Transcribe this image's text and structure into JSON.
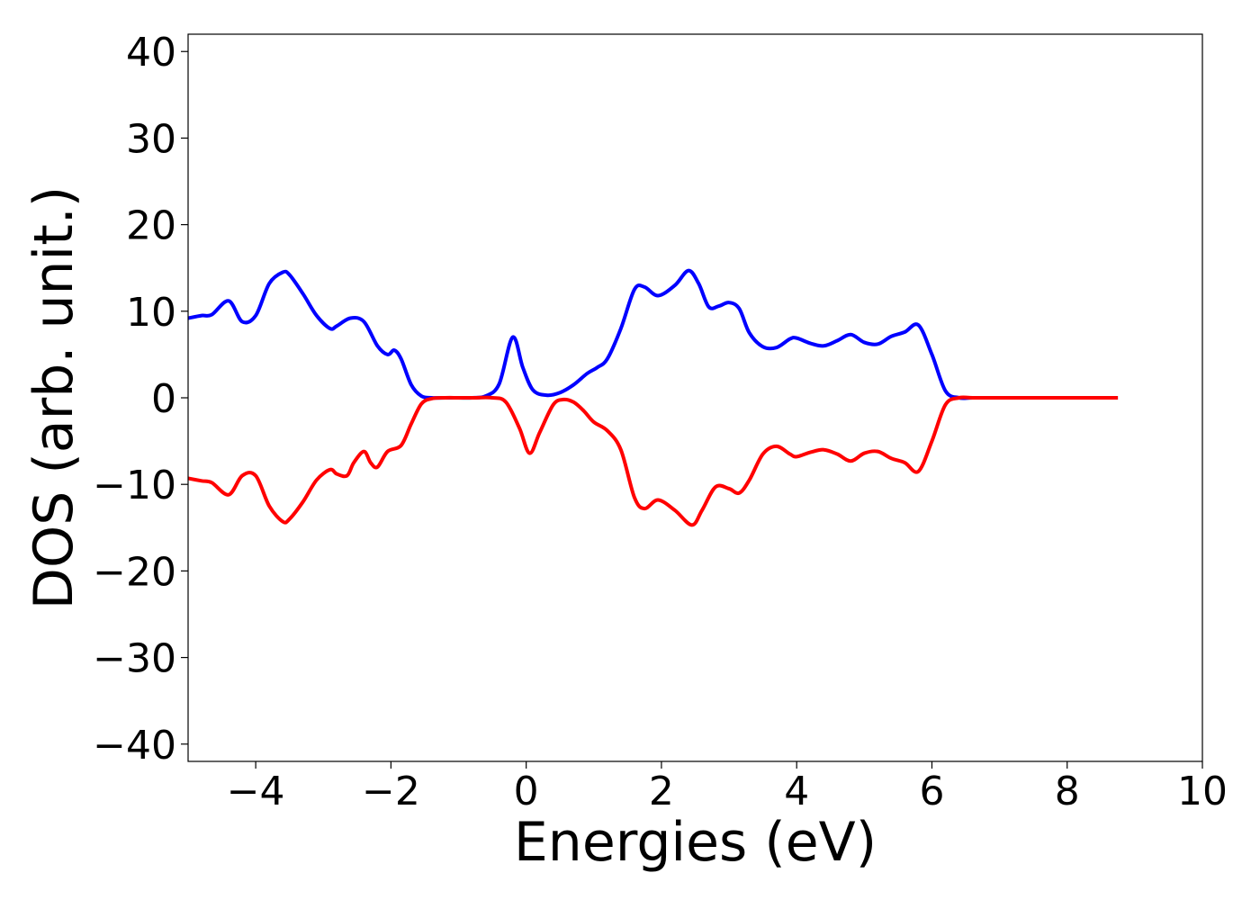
{
  "chart_data": {
    "type": "line",
    "title": "",
    "xlabel": "Energies (eV)",
    "ylabel": "DOS (arb. unit.)",
    "xlim": [
      -5,
      10
    ],
    "ylim": [
      -42,
      42
    ],
    "xticks": [
      -4,
      -2,
      0,
      2,
      4,
      6,
      8,
      10
    ],
    "yticks": [
      -40,
      -30,
      -20,
      -10,
      0,
      10,
      20,
      30,
      40
    ],
    "xtick_labels": [
      "−4",
      "−2",
      "0",
      "2",
      "4",
      "6",
      "8",
      "10"
    ],
    "ytick_labels": [
      "−40",
      "−30",
      "−20",
      "−10",
      "0",
      "10",
      "20",
      "30",
      "40"
    ],
    "grid": false,
    "legend": "none",
    "series": [
      {
        "color": "#0000ff",
        "x": [
          -5.0,
          -4.8,
          -4.65,
          -4.4,
          -4.2,
          -4.0,
          -3.8,
          -3.6,
          -3.5,
          -3.3,
          -3.1,
          -2.9,
          -2.8,
          -2.6,
          -2.4,
          -2.2,
          -2.05,
          -1.95,
          -1.85,
          -1.7,
          -1.55,
          -1.4,
          -1.2,
          -1.0,
          -0.8,
          -0.6,
          -0.4,
          -0.2,
          -0.05,
          0.1,
          0.3,
          0.5,
          0.7,
          0.9,
          1.05,
          1.2,
          1.4,
          1.6,
          1.75,
          1.95,
          2.2,
          2.4,
          2.55,
          2.7,
          2.85,
          3.0,
          3.15,
          3.3,
          3.5,
          3.7,
          3.9,
          4.0,
          4.2,
          4.4,
          4.6,
          4.8,
          5.0,
          5.2,
          5.4,
          5.6,
          5.8,
          6.0,
          6.2,
          6.4,
          6.6,
          7.0,
          7.5,
          8.0,
          8.5,
          8.75
        ],
        "y": [
          9.2,
          9.5,
          9.6,
          11.2,
          8.8,
          9.5,
          13.2,
          14.5,
          14.2,
          12.0,
          9.5,
          8.0,
          8.3,
          9.2,
          8.8,
          6.0,
          5.0,
          5.5,
          4.5,
          1.5,
          0.2,
          0.0,
          0.0,
          0.0,
          0.0,
          0.2,
          1.6,
          7.0,
          3.5,
          0.9,
          0.3,
          0.6,
          1.5,
          2.8,
          3.5,
          4.5,
          8.0,
          12.5,
          12.8,
          11.8,
          13.0,
          14.7,
          13.2,
          10.5,
          10.6,
          11.0,
          10.3,
          7.5,
          5.9,
          5.8,
          6.8,
          6.9,
          6.3,
          6.0,
          6.6,
          7.3,
          6.4,
          6.2,
          7.1,
          7.6,
          8.4,
          5.0,
          0.8,
          0.0,
          0.0,
          0.0,
          0.0,
          0.0,
          0.0,
          0.0
        ]
      },
      {
        "color": "#ff0000",
        "x": [
          -5.0,
          -4.8,
          -4.65,
          -4.4,
          -4.2,
          -4.0,
          -3.8,
          -3.6,
          -3.5,
          -3.3,
          -3.1,
          -2.9,
          -2.8,
          -2.65,
          -2.55,
          -2.4,
          -2.3,
          -2.2,
          -2.05,
          -1.85,
          -1.7,
          -1.55,
          -1.4,
          -1.2,
          -1.0,
          -0.8,
          -0.5,
          -0.3,
          -0.1,
          0.05,
          0.2,
          0.4,
          0.55,
          0.7,
          0.85,
          1.0,
          1.2,
          1.4,
          1.6,
          1.75,
          1.95,
          2.2,
          2.45,
          2.6,
          2.8,
          3.0,
          3.15,
          3.3,
          3.5,
          3.7,
          3.9,
          4.0,
          4.2,
          4.4,
          4.6,
          4.8,
          5.0,
          5.2,
          5.4,
          5.6,
          5.8,
          6.0,
          6.2,
          6.4,
          6.6,
          7.0,
          7.5,
          8.0,
          8.5,
          8.75
        ],
        "y": [
          -9.3,
          -9.6,
          -9.8,
          -11.2,
          -9.0,
          -9.0,
          -12.5,
          -14.3,
          -14.0,
          -12.0,
          -9.5,
          -8.3,
          -8.8,
          -9.0,
          -7.5,
          -6.2,
          -7.5,
          -8.0,
          -6.2,
          -5.5,
          -3.0,
          -0.7,
          -0.1,
          0.0,
          0.0,
          0.0,
          0.0,
          -0.5,
          -3.5,
          -6.4,
          -4.0,
          -0.8,
          -0.2,
          -0.5,
          -1.5,
          -2.8,
          -3.8,
          -6.0,
          -11.5,
          -12.8,
          -11.8,
          -13.0,
          -14.7,
          -13.0,
          -10.3,
          -10.5,
          -11.0,
          -9.5,
          -6.5,
          -5.6,
          -6.5,
          -6.8,
          -6.3,
          -6.0,
          -6.5,
          -7.3,
          -6.4,
          -6.2,
          -7.0,
          -7.5,
          -8.5,
          -5.0,
          -0.8,
          0.0,
          0.0,
          0.0,
          0.0,
          0.0,
          0.0,
          0.0
        ]
      }
    ]
  }
}
